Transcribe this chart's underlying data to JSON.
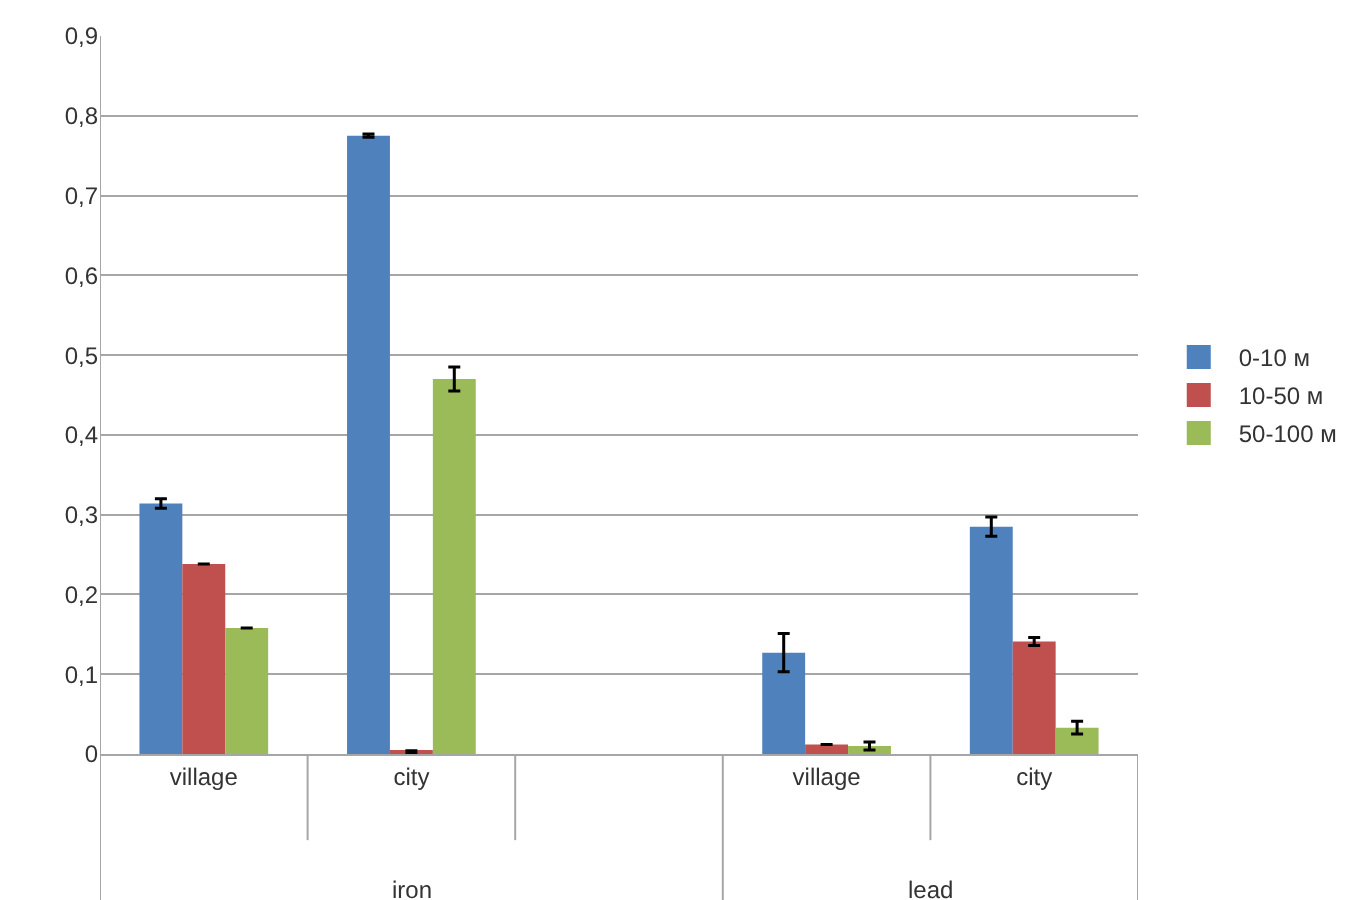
{
  "chart_data": {
    "type": "bar",
    "categories": [
      "village",
      "city",
      null,
      "village",
      "city"
    ],
    "series": [
      {
        "name": "0-10 м",
        "color": "#4f81bd",
        "values": [
          0.314,
          0.775,
          null,
          0.127,
          0.285
        ],
        "errors": [
          0.006,
          0.002,
          null,
          0.024,
          0.012
        ]
      },
      {
        "name": "10-50 м",
        "color": "#c0504d",
        "values": [
          0.238,
          0.003,
          null,
          0.012,
          0.141
        ],
        "errors": [
          null,
          0.001,
          null,
          null,
          0.005
        ]
      },
      {
        "name": "50-100 м",
        "color": "#9bbb59",
        "values": [
          0.158,
          0.47,
          null,
          0.01,
          0.033
        ],
        "errors": [
          null,
          0.015,
          null,
          0.005,
          0.008
        ]
      }
    ],
    "annotations": [
      "iron",
      "lead"
    ],
    "ylim": [
      0,
      0.9
    ],
    "yticks": [
      0,
      {
        "value": 0.1,
        "label": "0,1"
      },
      {
        "value": 0.2,
        "label": "0,2"
      },
      {
        "value": 0.3,
        "label": "0,3"
      },
      {
        "value": 0.4,
        "label": "0,4"
      },
      {
        "value": 0.5,
        "label": "0,5"
      },
      {
        "value": 0.6,
        "label": "0,6"
      },
      {
        "value": 0.7,
        "label": "0,7"
      },
      {
        "value": 0.8,
        "label": "0,8"
      },
      {
        "value": 0.9,
        "label": "0,9"
      }
    ],
    "grid": "y",
    "legend": "right"
  }
}
